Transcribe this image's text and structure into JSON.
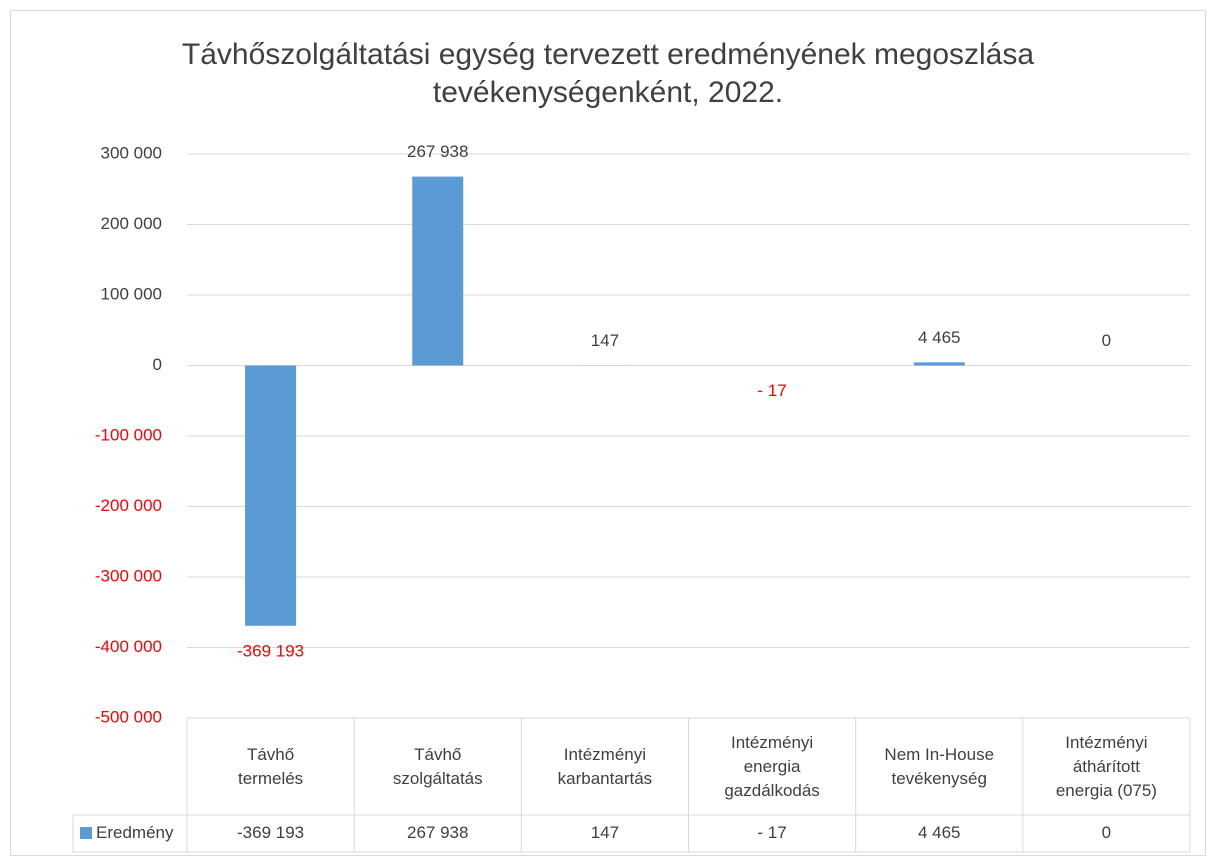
{
  "chart_data": {
    "type": "bar",
    "title": "Távhőszolgáltatási egység tervezett eredményének megoszlása\ntevékenységenként, 2022.",
    "categories": [
      "Távhő\ntermelés",
      "Távhő\nszolgáltatás",
      "Intézményi\nkarbantartás",
      "Intézményi\nenergia\ngazdálkodás",
      "Nem In-House\ntevékenység",
      "Intézményi\náthárított\nenergia (075)"
    ],
    "series": [
      {
        "name": "Eredmény",
        "color": "#5b9bd5",
        "values": [
          -369193,
          267938,
          147,
          -17,
          4465,
          0
        ],
        "value_labels": [
          "-369 193",
          "267 938",
          "147",
          "- 17",
          "4 465",
          "0"
        ]
      }
    ],
    "negative_color": "#ff0000",
    "ylim": [
      -500000,
      300000
    ],
    "yticks": [
      {
        "value": -500000,
        "label": "-500 000"
      },
      {
        "value": -400000,
        "label": "-400 000"
      },
      {
        "value": -300000,
        "label": "-300 000"
      },
      {
        "value": -200000,
        "label": "-200 000"
      },
      {
        "value": -100000,
        "label": "-100 000"
      },
      0,
      {
        "value": 100000,
        "label": "100 000"
      },
      {
        "value": 200000,
        "label": "200 000"
      },
      {
        "value": 300000,
        "label": "300 000"
      }
    ],
    "grid": true,
    "data_table": true
  }
}
